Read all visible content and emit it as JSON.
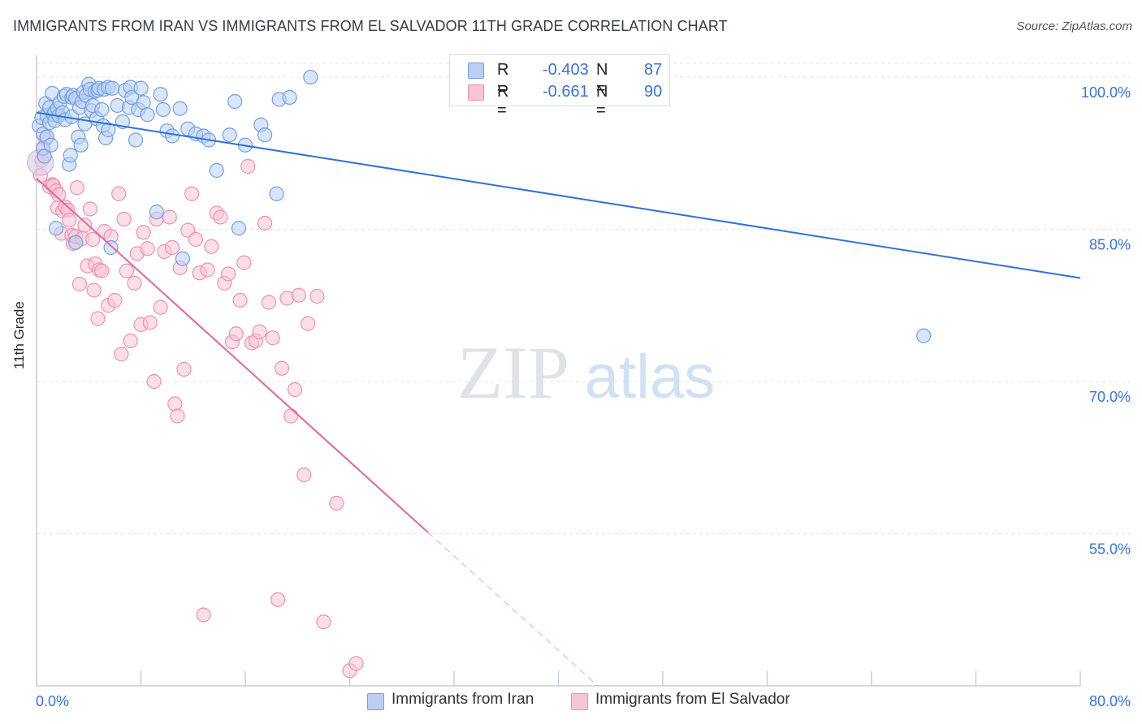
{
  "title": "IMMIGRANTS FROM IRAN VS IMMIGRANTS FROM EL SALVADOR 11TH GRADE CORRELATION CHART",
  "source": "Source: ZipAtlas.com",
  "watermark": {
    "zip": "ZIP",
    "atlas": "atlas"
  },
  "colors": {
    "iran": "#6fa0e3",
    "iran_fill": "#b9d0f3",
    "iran_line": "#2f72d6",
    "elsalvador": "#f08fb0",
    "elsalvador_fill": "#f8c5d6",
    "elsalvador_line": "#e5649a",
    "grid": "#e2e6ea",
    "axis_tick_text": "#3a73d1"
  },
  "legend": {
    "iran": {
      "r_label": "R =",
      "r_value": "-0.403",
      "n_label": "N =",
      "n_value": "87"
    },
    "elsalvador": {
      "r_label": "R =",
      "r_value": "-0.661",
      "n_label": "N =",
      "n_value": "90"
    }
  },
  "chart_data": {
    "type": "scatter",
    "title": "IMMIGRANTS FROM IRAN VS IMMIGRANTS FROM EL SALVADOR 11TH GRADE CORRELATION CHART",
    "xlabel": "",
    "ylabel": "11th Grade",
    "xlim": [
      0,
      80
    ],
    "ylim": [
      40,
      102
    ],
    "x_tick_labels": [
      "0.0%",
      "80.0%"
    ],
    "y_ticks": [
      55,
      70,
      85,
      100
    ],
    "y_tick_labels": [
      "55.0%",
      "70.0%",
      "85.0%",
      "100.0%"
    ],
    "grid": true,
    "series": [
      {
        "name": "Immigrants from Iran",
        "r": -0.403,
        "n": 87,
        "trend": {
          "x": [
            0,
            80
          ],
          "y": [
            96.5,
            80.2
          ],
          "dashed_from": null
        },
        "points": [
          [
            0.2,
            95.2
          ],
          [
            0.4,
            96.0
          ],
          [
            0.5,
            94.4
          ],
          [
            0.5,
            93.0
          ],
          [
            0.6,
            92.2
          ],
          [
            0.7,
            97.4
          ],
          [
            0.8,
            96.2
          ],
          [
            0.8,
            94.1
          ],
          [
            1.0,
            95.5
          ],
          [
            1.0,
            97.0
          ],
          [
            1.1,
            93.3
          ],
          [
            1.2,
            98.4
          ],
          [
            1.3,
            96.3
          ],
          [
            1.4,
            96.6
          ],
          [
            1.4,
            95.7
          ],
          [
            1.5,
            85.1
          ],
          [
            1.6,
            96.9
          ],
          [
            1.7,
            96.2
          ],
          [
            1.8,
            97.5
          ],
          [
            2.0,
            96.5
          ],
          [
            2.1,
            98.1
          ],
          [
            2.2,
            95.8
          ],
          [
            2.3,
            98.3
          ],
          [
            2.5,
            91.4
          ],
          [
            2.6,
            92.3
          ],
          [
            2.7,
            96.1
          ],
          [
            2.7,
            98.0
          ],
          [
            2.8,
            98.2
          ],
          [
            3.0,
            97.9
          ],
          [
            3.0,
            83.7
          ],
          [
            3.2,
            94.1
          ],
          [
            3.3,
            97.0
          ],
          [
            3.4,
            93.3
          ],
          [
            3.5,
            97.6
          ],
          [
            3.6,
            98.5
          ],
          [
            3.7,
            95.4
          ],
          [
            3.8,
            98.2
          ],
          [
            4.0,
            99.3
          ],
          [
            4.1,
            98.8
          ],
          [
            4.2,
            96.7
          ],
          [
            4.3,
            97.2
          ],
          [
            4.5,
            98.6
          ],
          [
            4.6,
            95.9
          ],
          [
            4.7,
            98.7
          ],
          [
            4.8,
            98.9
          ],
          [
            5.0,
            96.8
          ],
          [
            5.1,
            95.2
          ],
          [
            5.2,
            98.8
          ],
          [
            5.3,
            94.0
          ],
          [
            5.5,
            99.0
          ],
          [
            5.5,
            94.8
          ],
          [
            5.7,
            83.2
          ],
          [
            5.8,
            98.9
          ],
          [
            6.2,
            97.2
          ],
          [
            6.6,
            95.6
          ],
          [
            6.8,
            98.7
          ],
          [
            7.1,
            97.0
          ],
          [
            7.2,
            99.0
          ],
          [
            7.3,
            98.0
          ],
          [
            7.6,
            93.8
          ],
          [
            7.8,
            96.8
          ],
          [
            8.0,
            98.9
          ],
          [
            8.2,
            97.5
          ],
          [
            8.5,
            96.3
          ],
          [
            9.2,
            86.7
          ],
          [
            9.5,
            98.3
          ],
          [
            9.7,
            96.8
          ],
          [
            10.0,
            94.7
          ],
          [
            10.4,
            94.2
          ],
          [
            11.0,
            96.9
          ],
          [
            11.2,
            82.1
          ],
          [
            11.6,
            94.9
          ],
          [
            12.2,
            94.4
          ],
          [
            12.8,
            94.2
          ],
          [
            13.2,
            93.8
          ],
          [
            13.8,
            90.8
          ],
          [
            14.8,
            94.3
          ],
          [
            15.2,
            97.6
          ],
          [
            15.5,
            85.1
          ],
          [
            16.0,
            93.3
          ],
          [
            17.2,
            95.3
          ],
          [
            17.5,
            94.3
          ],
          [
            18.4,
            88.5
          ],
          [
            18.6,
            97.8
          ],
          [
            19.4,
            98.0
          ],
          [
            21.0,
            100.0
          ],
          [
            68.0,
            74.5
          ]
        ]
      },
      {
        "name": "Immigrants from El Salvador",
        "r": -0.661,
        "n": 90,
        "trend": {
          "x": [
            0,
            80
          ],
          "y": [
            90.0,
            -3.0
          ],
          "dashed_from": 30.0
        },
        "points": [
          [
            0.3,
            90.3
          ],
          [
            0.4,
            91.8
          ],
          [
            0.5,
            92.9
          ],
          [
            0.7,
            93.9
          ],
          [
            1.0,
            89.2
          ],
          [
            1.2,
            89.4
          ],
          [
            1.3,
            89.3
          ],
          [
            1.5,
            88.8
          ],
          [
            1.6,
            87.1
          ],
          [
            1.7,
            88.4
          ],
          [
            1.9,
            84.6
          ],
          [
            2.0,
            86.8
          ],
          [
            2.2,
            87.2
          ],
          [
            2.4,
            86.9
          ],
          [
            2.5,
            85.9
          ],
          [
            2.7,
            84.4
          ],
          [
            2.8,
            83.6
          ],
          [
            3.0,
            84.3
          ],
          [
            3.1,
            89.1
          ],
          [
            3.3,
            79.6
          ],
          [
            3.5,
            84.1
          ],
          [
            3.7,
            85.4
          ],
          [
            3.9,
            81.4
          ],
          [
            4.1,
            87.0
          ],
          [
            4.3,
            84.0
          ],
          [
            4.4,
            79.0
          ],
          [
            4.5,
            81.6
          ],
          [
            4.7,
            76.2
          ],
          [
            4.8,
            81.0
          ],
          [
            5.0,
            80.9
          ],
          [
            5.2,
            84.8
          ],
          [
            5.5,
            77.5
          ],
          [
            5.7,
            84.3
          ],
          [
            6.0,
            78.0
          ],
          [
            6.3,
            88.5
          ],
          [
            6.5,
            72.7
          ],
          [
            6.7,
            86.0
          ],
          [
            6.9,
            80.9
          ],
          [
            7.2,
            74.0
          ],
          [
            7.5,
            79.7
          ],
          [
            7.7,
            82.6
          ],
          [
            8.0,
            75.6
          ],
          [
            8.2,
            84.7
          ],
          [
            8.5,
            83.1
          ],
          [
            8.7,
            75.8
          ],
          [
            9.0,
            70.0
          ],
          [
            9.2,
            86.0
          ],
          [
            9.5,
            77.3
          ],
          [
            9.8,
            82.8
          ],
          [
            10.2,
            86.2
          ],
          [
            10.4,
            83.2
          ],
          [
            10.6,
            67.8
          ],
          [
            10.8,
            66.6
          ],
          [
            11.0,
            81.2
          ],
          [
            11.3,
            71.2
          ],
          [
            11.6,
            84.9
          ],
          [
            11.9,
            88.5
          ],
          [
            12.2,
            84.0
          ],
          [
            12.5,
            80.7
          ],
          [
            12.8,
            47.0
          ],
          [
            13.1,
            81.0
          ],
          [
            13.4,
            83.3
          ],
          [
            13.8,
            86.6
          ],
          [
            14.1,
            86.2
          ],
          [
            14.4,
            79.7
          ],
          [
            14.7,
            80.6
          ],
          [
            15.0,
            73.9
          ],
          [
            15.3,
            74.7
          ],
          [
            15.6,
            78.0
          ],
          [
            15.9,
            81.7
          ],
          [
            16.2,
            91.2
          ],
          [
            16.5,
            73.8
          ],
          [
            16.8,
            74.0
          ],
          [
            17.1,
            74.9
          ],
          [
            17.5,
            85.6
          ],
          [
            17.8,
            77.8
          ],
          [
            18.1,
            74.3
          ],
          [
            18.5,
            48.5
          ],
          [
            18.8,
            71.3
          ],
          [
            19.2,
            78.2
          ],
          [
            19.5,
            66.6
          ],
          [
            19.8,
            69.2
          ],
          [
            20.1,
            78.5
          ],
          [
            20.5,
            60.8
          ],
          [
            20.8,
            75.7
          ],
          [
            21.5,
            78.4
          ],
          [
            22.0,
            46.3
          ],
          [
            23.0,
            58.0
          ],
          [
            24.0,
            41.5
          ],
          [
            24.5,
            42.2
          ]
        ]
      }
    ]
  },
  "bottom_legend": {
    "iran_label": "Immigrants from Iran",
    "elsalvador_label": "Immigrants from El Salvador"
  }
}
